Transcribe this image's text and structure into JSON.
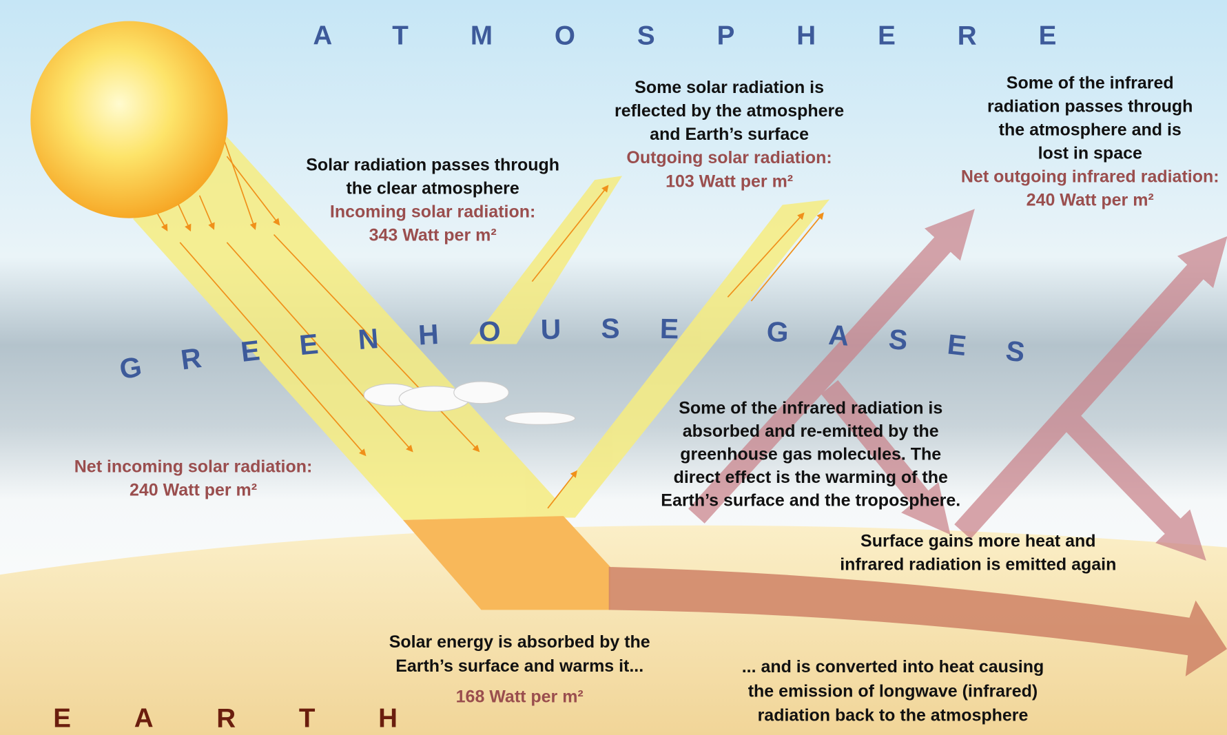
{
  "atmosphere": "ATMOSPHERE",
  "greenhouse_gases": "GREENHOUSE GASES",
  "earth": "EARTH",
  "incoming": {
    "lines": [
      "Solar radiation passes through",
      "the clear atmosphere"
    ],
    "label": "Incoming solar radiation:",
    "value": "343 Watt per m²"
  },
  "reflected": {
    "lines": [
      "Some solar radiation is",
      "reflected by the atmosphere",
      "and Earth’s surface"
    ],
    "label": "Outgoing solar radiation:",
    "value": "103 Watt per m²"
  },
  "infrared_out": {
    "lines": [
      "Some of the infrared",
      "radiation passes through",
      "the atmosphere and is",
      "lost in space"
    ],
    "label": "Net outgoing infrared radiation:",
    "value": "240 Watt per m²"
  },
  "net_incoming": {
    "label": "Net incoming solar radiation:",
    "value": "240 Watt per m²"
  },
  "greenhouse": {
    "lines": [
      "Some of the infrared radiation is",
      "absorbed and re-emitted by the",
      "greenhouse gas molecules. The",
      "direct effect is the warming of the",
      "Earth’s surface and the troposphere."
    ]
  },
  "surface_gains": {
    "lines": [
      "Surface gains more heat and",
      "infrared radiation is emitted again"
    ]
  },
  "absorbed": {
    "lines": [
      "Solar energy is absorbed by the",
      "Earth’s surface and warms it..."
    ],
    "value": "168 Watt per m²"
  },
  "converted": {
    "lines": [
      "... and is converted into heat causing",
      "the emission of longwave (infrared)",
      "radiation back to the atmosphere"
    ]
  }
}
